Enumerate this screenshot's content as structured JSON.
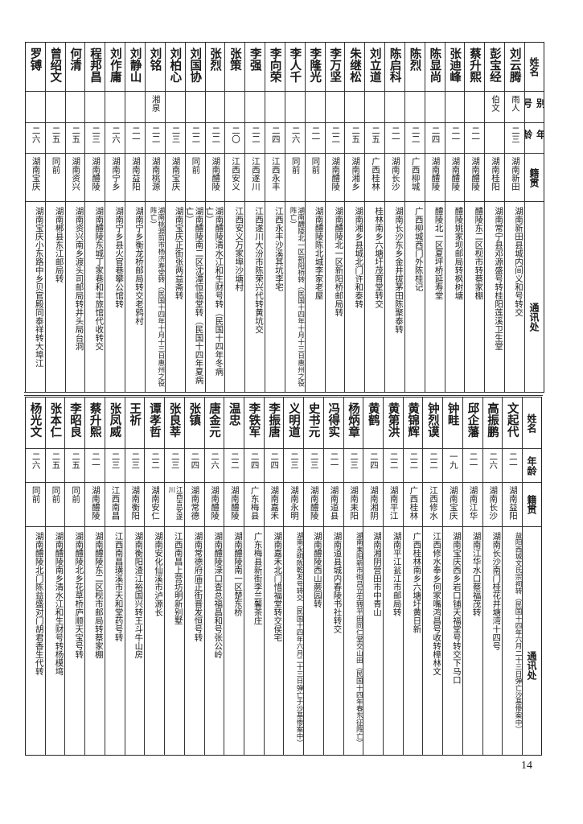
{
  "top": {
    "headers": {
      "name": "姓名",
      "alias": "别号",
      "age": "年龄",
      "native": "籍贯",
      "address": "通讯处"
    },
    "rows": [
      {
        "name": "刘云腾",
        "alias": "雨人",
        "age": "二三",
        "native": "湖南新田",
        "address": "湖南新田县城内间义和号转交"
      },
      {
        "name": "彭宝经",
        "alias": "伯文",
        "age": "",
        "native": "湖南桂阳",
        "address": "湖南常宁县邓源盛号转桂阳莲溪卫生堂"
      },
      {
        "name": "蔡升熙",
        "alias": "",
        "age": "二一",
        "native": "湖南醴陵",
        "address": "醴陵东二区枧市转蔡家棚"
      },
      {
        "name": "张迪峰",
        "alias": "",
        "age": "二一",
        "native": "湖南醴陵",
        "address": "醴陵姚家坝邮局转枫树塘"
      },
      {
        "name": "陈显尚",
        "alias": "",
        "age": "二四",
        "native": "湖南醴陵",
        "address": "醴陵北一区夏坪桥延寿堂"
      },
      {
        "name": "陈烈",
        "alias": "",
        "age": "二二",
        "native": "广西柳城",
        "address": "广西柳城西门外陈桂记"
      },
      {
        "name": "陈启科",
        "alias": "",
        "age": "二一",
        "native": "湖南长沙",
        "address": "湖南长沙东乡金井拔茅田陈聚泰转"
      },
      {
        "name": "刘立道",
        "alias": "",
        "age": "二五",
        "native": "广西桂林",
        "address": "桂林南乡六塘圩茂育堂转交"
      },
      {
        "name": "朱继松",
        "alias": "",
        "age": "二五",
        "native": "湖南湘乡",
        "address": "湖南湘乡县城北门许和泰转"
      },
      {
        "name": "李万坚",
        "alias": "",
        "age": "二二",
        "native": "湖南醴陵",
        "address": "湖南醴陵北一区新阳桥邮局转"
      },
      {
        "name": "李隆光",
        "alias": "",
        "age": "二一",
        "native": "同前",
        "address": "湖南醴陵陈北城李家老屋"
      },
      {
        "name": "李人千",
        "alias": "",
        "age": "二六",
        "native": "同前",
        "address": "湖南醴陵北一区新阳桥转（民国十四年十月十三日惠州之役阵亡）"
      },
      {
        "name": "李向荣",
        "alias": "",
        "age": "二四",
        "native": "江西永丰",
        "address": "江西永丰沙溪其坑李宅"
      },
      {
        "name": "李强",
        "alias": "",
        "age": "二二",
        "native": "江西遂川",
        "address": "江西遂川大汾市陈荣兴代转黄坑交"
      },
      {
        "name": "张策",
        "alias": "",
        "age": "二〇",
        "native": "江西安义",
        "address": "江西安义万家埠沙塘村"
      },
      {
        "name": "张烈",
        "alias": "",
        "age": "二二",
        "native": "湖南醴陵",
        "address": "湖南醴陵清水江和生财号转（民国十四年冬病亡）"
      },
      {
        "name": "刘国协",
        "alias": "",
        "age": "二二",
        "native": "同前",
        "address": "湖南醴陵南二区沈潭恒临堂转（民国十四年夏病亡）"
      },
      {
        "name": "刘柏心",
        "alias": "",
        "age": "二三",
        "native": "湖南宝庆",
        "address": "湖南宝庆正街张两益斋转"
      },
      {
        "name": "刘铭",
        "alias": "湘泉",
        "age": "二二",
        "native": "湖南桃源",
        "address": "湖南桃源剪市杨济寿堂转（民国十四年十月十三日惠州之役阵亡）"
      },
      {
        "name": "刘静山",
        "alias": "",
        "age": "二一",
        "native": "湖南益阳",
        "address": "湖南宁乡衡龙桥邮局转交老鸦村"
      },
      {
        "name": "刘作庸",
        "alias": "",
        "age": "二六",
        "native": "湖南宁乡",
        "address": "湖南宁乡县火官巷攀公馆转"
      },
      {
        "name": "程邦昌",
        "alias": "",
        "age": "二三",
        "native": "湖南醴陵",
        "address": "湖南醴陵东城丁家巷和丰旅馆代收转交"
      },
      {
        "name": "何清",
        "alias": "",
        "age": "二五",
        "native": "湖南资兴",
        "address": "湖南资兴南乡渡头司邮局转井头局台洞"
      },
      {
        "name": "曾绍文",
        "alias": "",
        "age": "二五",
        "native": "同前",
        "address": "湖南郴县东江邮局转"
      },
      {
        "name": "罗镈",
        "alias": "",
        "age": "二六",
        "native": "湖南宝庆",
        "address": "湖南宝庆小东路中乡贝官殿同泰祥转大埠江"
      }
    ]
  },
  "bottom": {
    "headers": {
      "name": "姓名",
      "age": "年龄",
      "native": "籍贯",
      "address": "通讯处"
    },
    "rows": [
      {
        "name": "文起代",
        "age": "二一",
        "native": "湖南益阳",
        "address": "益阳西城文氏宗祠转（民国十四年六月二十三日弹亡沙基惨案中）"
      },
      {
        "name": "高振鹏",
        "age": "二六",
        "native": "湖南长沙",
        "address": "湖南长沙南门桂花井塘湾十四号"
      },
      {
        "name": "邱企藩",
        "age": "二一",
        "native": "湖南江华",
        "address": "湖南江华水口蔡福茂转"
      },
      {
        "name": "钟畦",
        "age": "一九",
        "native": "湖南宝庆",
        "address": "湖南宝庆西乡岩口铺天福堂号转交下马口"
      },
      {
        "name": "钟烈谟",
        "age": "二二",
        "native": "江西修水",
        "address": "江西修水奉乡何家嘴鸿昌号收转樟林文"
      },
      {
        "name": "黄锦辉",
        "age": "二二",
        "native": "广西桂林",
        "address": "广西桂林南乡六塘圩黄日新"
      },
      {
        "name": "黄第洪",
        "age": "二二",
        "native": "湖南平江",
        "address": "湖南平江瓮江市邮局转"
      },
      {
        "name": "黄鹤",
        "age": "二四",
        "native": "湖南湘阴",
        "address": "湖南湘阴营田市中青山"
      },
      {
        "name": "杨炳章",
        "age": "二三",
        "native": "湖南耒阳",
        "address": "湖南耒阳新市街吕立生转平田同仁堂交山田（民国十四年春东征阵亡）"
      },
      {
        "name": "冯得实",
        "age": "二一",
        "native": "湖南道县",
        "address": "湖南道县城内春陵书社转交"
      },
      {
        "name": "史书元",
        "age": "二三",
        "native": "湖南醴陵",
        "address": "湖南醴陵西山蕨园转"
      },
      {
        "name": "义明道",
        "age": "二三",
        "native": "湖南永明",
        "address": "湖南永明陈乾发号转交（民国十四年六月二十三日弹亡于沙基惨案中）"
      },
      {
        "name": "李振唐",
        "age": "二四",
        "native": "湖南嘉禾",
        "address": "湖南嘉禾北门惜福堂转交侯宅"
      },
      {
        "name": "李铁军",
        "age": "二四",
        "native": "广东梅县",
        "address": "广东梅县新街李兰馨茶庄"
      },
      {
        "name": "温忠",
        "age": "二二",
        "native": "湖南醴陵",
        "address": "湖南醴陵南一区楚东桥"
      },
      {
        "name": "唐金元",
        "age": "二六",
        "native": "湖南醴陵",
        "address": "湖南醴陵渌口查总福昌和号张公岭"
      },
      {
        "name": "张镇",
        "age": "二四",
        "native": "湖南常德",
        "address": "湖南常德府庙正街晋发恒号转"
      },
      {
        "name": "张良莘",
        "age": "二三",
        "native": "江西吉安遂川",
        "address": "江西南昌上营坊明新别墅"
      },
      {
        "name": "谭孝哲",
        "age": "二二",
        "native": "湖南安仁",
        "address": "湖南安化仙溪市泸源长"
      },
      {
        "name": "王祈",
        "age": "二三",
        "native": "湖南衡阳",
        "address": "湖南衡阳渣江裕国兴转王斗牛山房"
      },
      {
        "name": "张凤威",
        "age": "二三",
        "native": "江西南昌",
        "address": "江西南昌璜溪市天和堂药号转"
      },
      {
        "name": "蔡升熙",
        "age": "二一",
        "native": "湖南醴陵",
        "address": "湖南醴陵东二区枧市邮局转蔡家棚"
      },
      {
        "name": "李昭良",
        "age": "二五",
        "native": "同前",
        "address": "湖南醴陵北乡花草桥庐顺天宝号转"
      },
      {
        "name": "张本仁",
        "age": "二五",
        "native": "同前",
        "address": "湖南醴陵南乡清水江和生财号转杨模塆"
      },
      {
        "name": "杨光文",
        "age": "二六",
        "native": "同前",
        "address": "湖南醴陵北门陈益盛对门胡君香生代转"
      }
    ]
  },
  "page_number": "14"
}
